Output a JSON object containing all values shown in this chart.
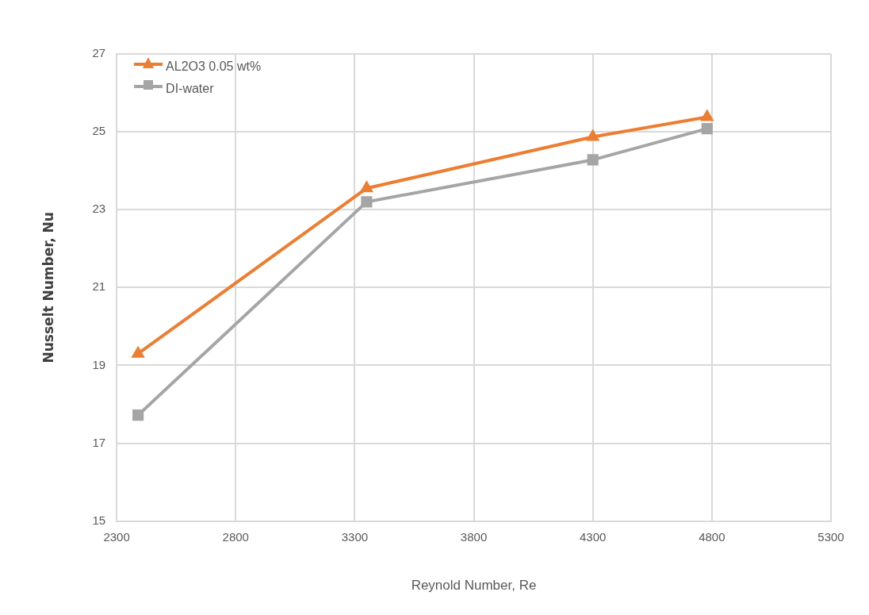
{
  "chart_data": {
    "type": "line",
    "xlabel": "Reynold Number, Re",
    "ylabel": "Nusselt Number, Nu",
    "xlim": [
      2300,
      5300
    ],
    "xticks": [
      2300,
      2800,
      3300,
      3800,
      4300,
      4800,
      5300
    ],
    "ylim": [
      15,
      27
    ],
    "yticks": [
      15,
      17,
      19,
      21,
      23,
      25,
      27
    ],
    "grid": true,
    "legend": "top left",
    "line_style": "solid",
    "series": [
      {
        "name": "AL2O3 0.05 wt%",
        "color": "#ed7d31",
        "marker": "triangle",
        "x": [
          2390,
          3350,
          4300,
          4780
        ],
        "values": [
          19.3,
          23.55,
          24.87,
          25.38
        ]
      },
      {
        "name": "DI-water",
        "color": "#a5a5a5",
        "marker": "square",
        "x": [
          2390,
          3350,
          4300,
          4780
        ],
        "values": [
          17.72,
          23.2,
          24.28,
          25.08
        ]
      }
    ]
  }
}
